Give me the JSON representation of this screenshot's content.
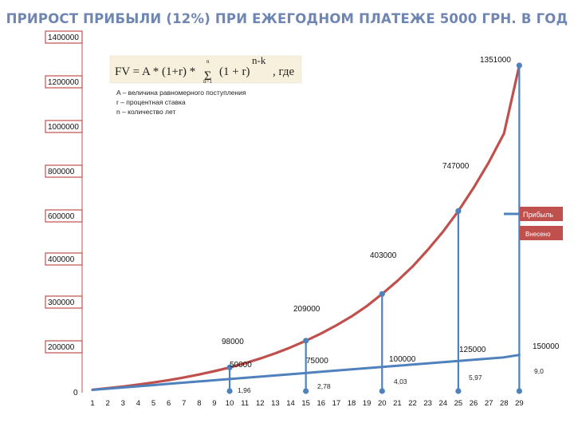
{
  "title": "ПРИРОСТ ПРИБЫЛИ (12%) ПРИ ЕЖЕГОДНОМ ПЛАТЕЖЕ 5000 ГРН. В ГОД",
  "formula": {
    "main": "FV = A * (1+r) * ",
    "sum_upper": "n",
    "sum_lower": "n=1",
    "term": "(1 + r)",
    "exponent": "n-k",
    "suffix": ", где"
  },
  "notes": [
    "A – величина равномерного поступления",
    "r – процентная ставка",
    "n – количество лет"
  ],
  "legend": {
    "profit": "Прибыль",
    "invested": "Внесено"
  },
  "colors": {
    "title": "#6f86b3",
    "profit_line": "#c0504d",
    "invested_line": "#4f81bd",
    "axis_box": "#c0504d",
    "marker": "#4f81bd"
  },
  "chart_data": {
    "type": "line",
    "title": "ПРИРОСТ ПРИБЫЛИ (12%) ПРИ ЕЖЕГОДНОМ ПЛАТЕЖЕ 5000 ГРН. В ГОД",
    "x": [
      1,
      2,
      3,
      4,
      5,
      6,
      7,
      8,
      9,
      10,
      11,
      12,
      13,
      14,
      15,
      16,
      17,
      18,
      19,
      20,
      21,
      22,
      23,
      24,
      25,
      26,
      27,
      28,
      29
    ],
    "x_tick_labels": [
      "1",
      "2",
      "3",
      "4",
      "5",
      "6",
      "7",
      "8",
      "9",
      "10",
      "11",
      "12",
      "13",
      "14",
      "15",
      "16",
      "17",
      "18",
      "19",
      "20",
      "21",
      "22",
      "23",
      "24",
      "25",
      "26",
      "27",
      "28",
      "29"
    ],
    "y_tick_labels": [
      "0",
      "200000",
      "300000",
      "400000",
      "600000",
      "800000",
      "1000000",
      "1200000",
      "1400000"
    ],
    "series": [
      {
        "name": "Прибыль",
        "color": "#c0504d",
        "values": [
          5600,
          11900,
          18900,
          26800,
          35600,
          45400,
          56500,
          68900,
          82800,
          98000,
          115700,
          135100,
          156900,
          181300,
          209000,
          239000,
          273000,
          310000,
          353000,
          403000,
          457000,
          517000,
          586000,
          662000,
          747000,
          843000,
          949000,
          1069000,
          1351000
        ]
      },
      {
        "name": "Внесено",
        "color": "#4f81bd",
        "values": [
          5000,
          10000,
          15000,
          20000,
          25000,
          30000,
          35000,
          40000,
          45000,
          50000,
          55000,
          60000,
          65000,
          70000,
          75000,
          80000,
          85000,
          90000,
          95000,
          100000,
          105000,
          110000,
          115000,
          120000,
          125000,
          130000,
          135000,
          140000,
          150000
        ]
      }
    ],
    "highlight_years": [
      10,
      15,
      20,
      25,
      29
    ],
    "profit_labels": [
      "98000",
      "209000",
      "403000",
      "747000",
      "1351000"
    ],
    "invested_labels": [
      "50000",
      "75000",
      "100000",
      "125000",
      "150000"
    ],
    "ratio_labels": [
      "1,96",
      "2,78",
      "4,03",
      "5,97",
      "9,0"
    ],
    "grid": false,
    "legend_position": "right"
  }
}
